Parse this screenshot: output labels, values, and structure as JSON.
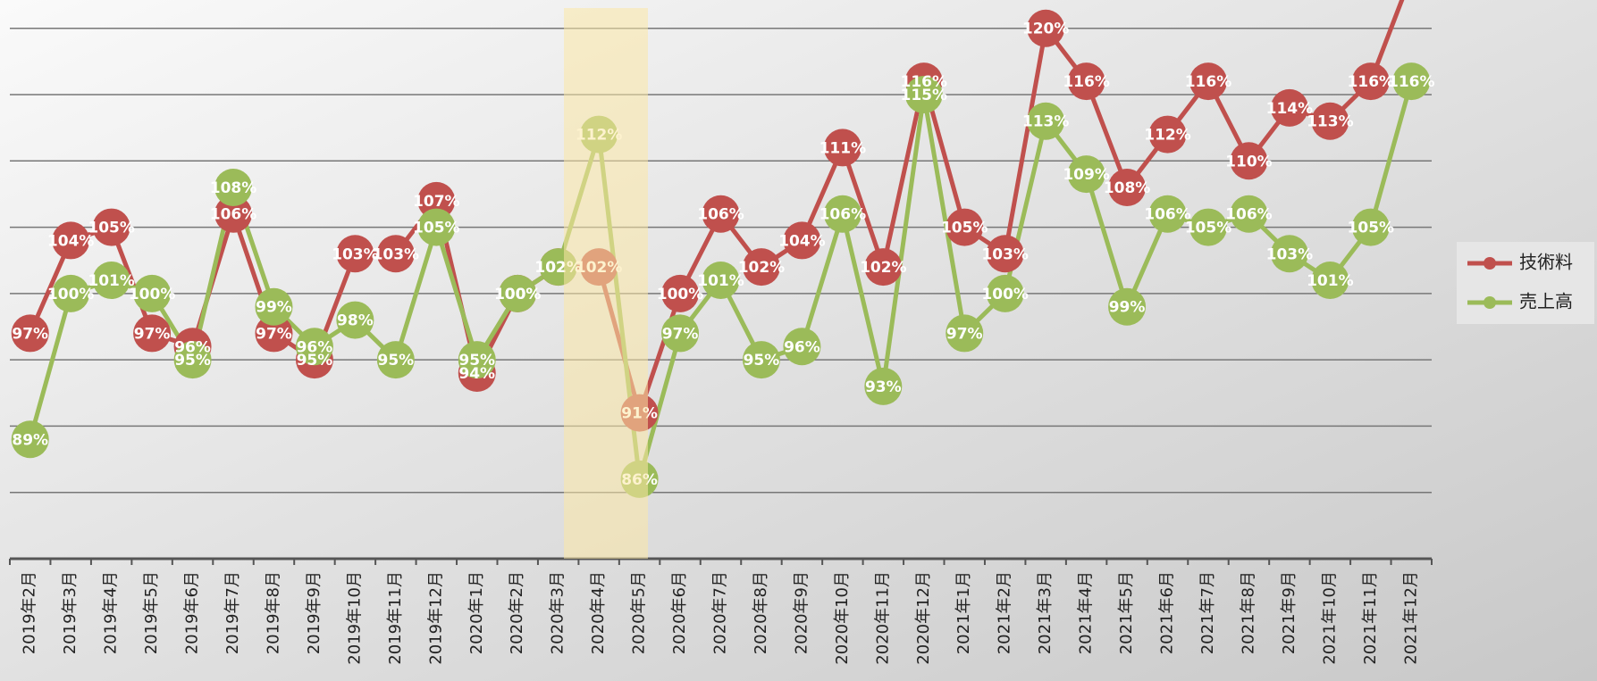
{
  "chart_data": {
    "type": "line",
    "categories": [
      "2019年2月",
      "2019年3月",
      "2019年4月",
      "2019年5月",
      "2019年6月",
      "2019年7月",
      "2019年8月",
      "2019年9月",
      "2019年10月",
      "2019年11月",
      "2019年12月",
      "2020年1月",
      "2020年2月",
      "2020年3月",
      "2020年4月",
      "2020年5月",
      "2020年6月",
      "2020年7月",
      "2020年8月",
      "2020年9月",
      "2020年10月",
      "2020年11月",
      "2020年12月",
      "2021年1月",
      "2021年2月",
      "2021年3月",
      "2021年4月",
      "2021年5月",
      "2021年6月",
      "2021年7月",
      "2021年8月",
      "2021年9月",
      "2021年10月",
      "2021年11月",
      "2021年12月"
    ],
    "series": [
      {
        "name": "技術料",
        "color": "#c0504d",
        "values": [
          97,
          104,
          105,
          97,
          96,
          106,
          97,
          95,
          103,
          103,
          107,
          94,
          100,
          102,
          102,
          91,
          100,
          106,
          102,
          104,
          111,
          102,
          116,
          105,
          103,
          120,
          116,
          108,
          112,
          116,
          110,
          114,
          113,
          116,
          124
        ],
        "value_labels": [
          "97%",
          "104%",
          "105%",
          "97%",
          "96%",
          "106%",
          "97%",
          "95%",
          "103%",
          "103%",
          "107%",
          "94%",
          "100%",
          "102%",
          "102%",
          "91%",
          "100%",
          "106%",
          "102%",
          "104%",
          "111%",
          "102%",
          "116%",
          "105%",
          "103%",
          "120%",
          "116%",
          "108%",
          "112%",
          "116%",
          "110%",
          "114%",
          "113%",
          "116%",
          null
        ]
      },
      {
        "name": "売上高",
        "color": "#9bbb59",
        "values": [
          89,
          100,
          101,
          100,
          95,
          108,
          99,
          96,
          98,
          95,
          105,
          95,
          100,
          102,
          112,
          86,
          97,
          101,
          95,
          96,
          106,
          93,
          115,
          97,
          100,
          113,
          109,
          99,
          106,
          105,
          106,
          103,
          101,
          105,
          116
        ],
        "value_labels": [
          "89%",
          "100%",
          "101%",
          "100%",
          "95%",
          "108%",
          "99%",
          "96%",
          "98%",
          "95%",
          "105%",
          "95%",
          "100%",
          "102%",
          "112%",
          "86%",
          "97%",
          "101%",
          "95%",
          "96%",
          "106%",
          "93%",
          "115%",
          "97%",
          "100%",
          "113%",
          "109%",
          "99%",
          "106%",
          "105%",
          "106%",
          "103%",
          "101%",
          "105%",
          "116%"
        ]
      }
    ],
    "ylim": [
      80,
      122
    ],
    "yticks": [
      80,
      85,
      90,
      95,
      100,
      105,
      110,
      115,
      120
    ],
    "grid": true,
    "legend": "right"
  }
}
